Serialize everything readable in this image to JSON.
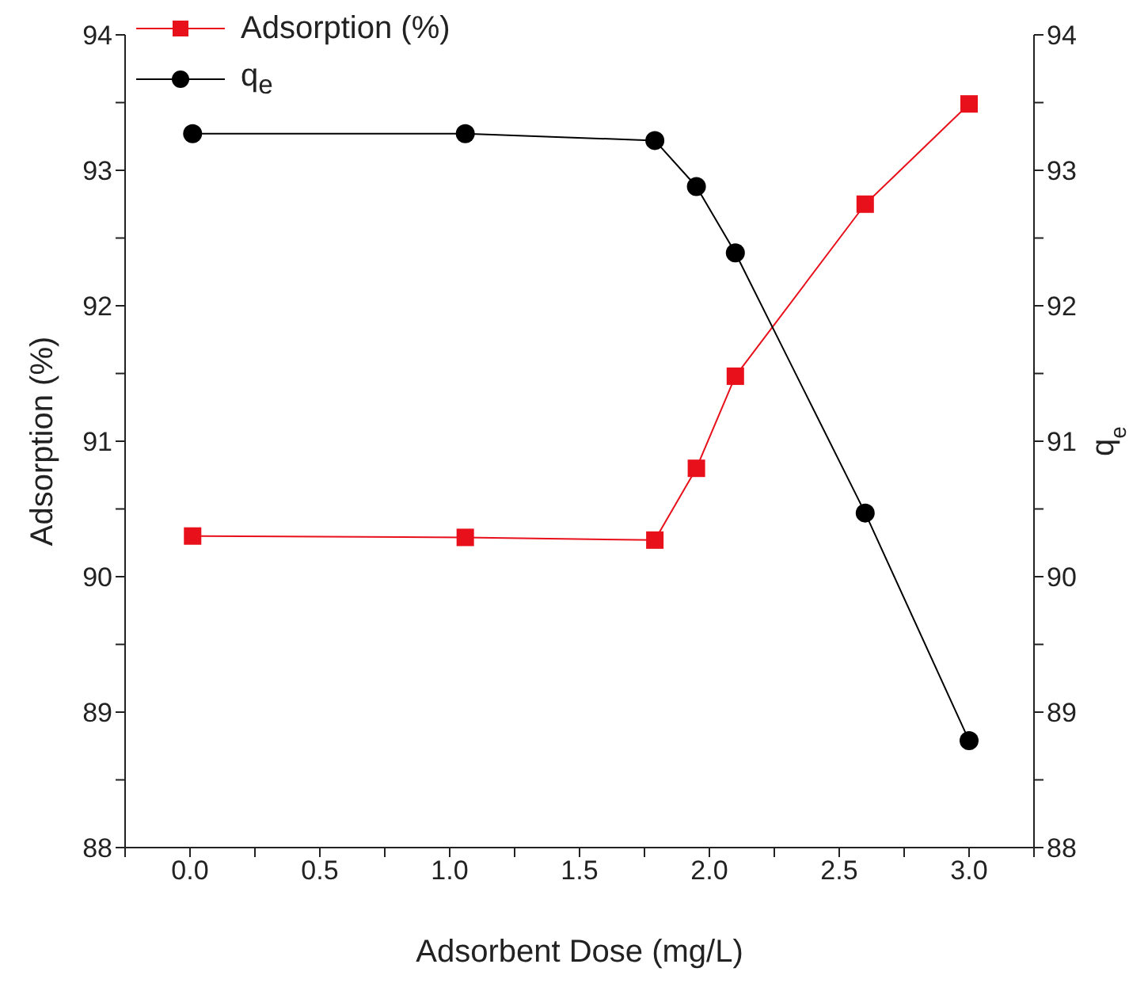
{
  "chart_data": {
    "type": "line",
    "xlabel": "Adsorbent Dose (mg/L)",
    "ylabel": "Adsorption (%)",
    "y2label": "q$_{e}$",
    "series": [
      {
        "name": "Adsorption (%)",
        "color": "#e8101a",
        "marker": "square",
        "x": [
          0.01,
          1.06,
          1.79,
          1.95,
          2.1,
          2.6,
          3.0
        ],
        "values": [
          90.3,
          90.29,
          90.27,
          90.8,
          91.48,
          92.75,
          93.49
        ]
      },
      {
        "name": "q$_{e}$",
        "color": "#000000",
        "marker": "circle",
        "axis": "y2",
        "x": [
          0.01,
          1.06,
          1.79,
          1.95,
          2.1,
          2.6,
          3.0
        ],
        "values": [
          93.27,
          93.27,
          93.22,
          92.88,
          92.39,
          90.47,
          88.79
        ]
      }
    ],
    "xlim": [
      -0.25,
      3.25
    ],
    "xticks": [
      {
        "value": -0.25,
        "label": null
      },
      {
        "value": 0,
        "label": "0.0"
      },
      {
        "value": 0.25,
        "label": null
      },
      0.5,
      {
        "value": 0.75,
        "label": null
      },
      {
        "value": 1,
        "label": "1.0"
      },
      {
        "value": 1.25,
        "label": null
      },
      1.5,
      {
        "value": 1.75,
        "label": null
      },
      {
        "value": 2,
        "label": "2.0"
      },
      {
        "value": 2.25,
        "label": null
      },
      2.5,
      {
        "value": 2.75,
        "label": null
      },
      {
        "value": 3,
        "label": "3.0"
      },
      {
        "value": 3.25,
        "label": null
      }
    ],
    "ylim": [
      88,
      94
    ],
    "yticks": [
      88,
      {
        "value": 88.5,
        "label": null
      },
      89,
      {
        "value": 89.5,
        "label": null
      },
      90,
      {
        "value": 90.5,
        "label": null
      },
      91,
      {
        "value": 91.5,
        "label": null
      },
      92,
      {
        "value": 92.5,
        "label": null
      },
      93,
      {
        "value": 93.5,
        "label": null
      },
      94
    ],
    "y2lim": [
      88,
      94
    ],
    "y2ticks": [
      88,
      {
        "value": 88.5,
        "label": null
      },
      89,
      {
        "value": 89.5,
        "label": null
      },
      90,
      {
        "value": 90.5,
        "label": null
      },
      91,
      {
        "value": 91.5,
        "label": null
      },
      92,
      {
        "value": 92.5,
        "label": null
      },
      93,
      {
        "value": 93.5,
        "label": null
      },
      94
    ],
    "grid": false,
    "legend": "top left",
    "line_style": "solid"
  }
}
